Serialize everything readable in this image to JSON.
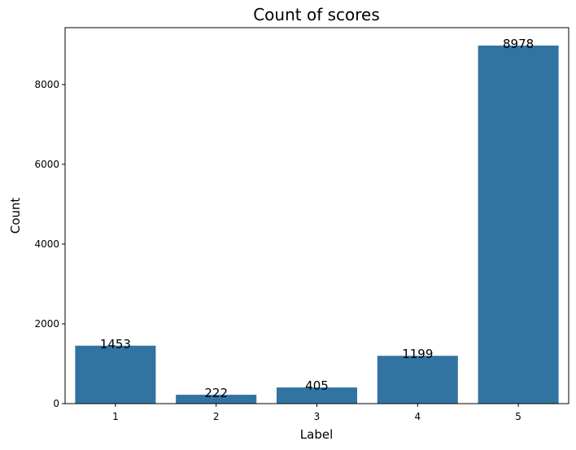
{
  "chart_data": {
    "type": "bar",
    "title": "Count of scores",
    "xlabel": "Label",
    "ylabel": "Count",
    "categories": [
      "1",
      "2",
      "3",
      "4",
      "5"
    ],
    "values": [
      1453,
      222,
      405,
      1199,
      8978
    ],
    "data_labels": [
      "1453",
      "222",
      "405",
      "1199",
      "8978"
    ],
    "ylim": [
      0,
      9427
    ],
    "yticks": [
      0,
      2000,
      4000,
      6000,
      8000
    ],
    "ytick_labels": [
      "0",
      "2000",
      "4000",
      "6000",
      "8000"
    ],
    "bar_color": "#3274a1",
    "grid": false,
    "legend": "none"
  }
}
